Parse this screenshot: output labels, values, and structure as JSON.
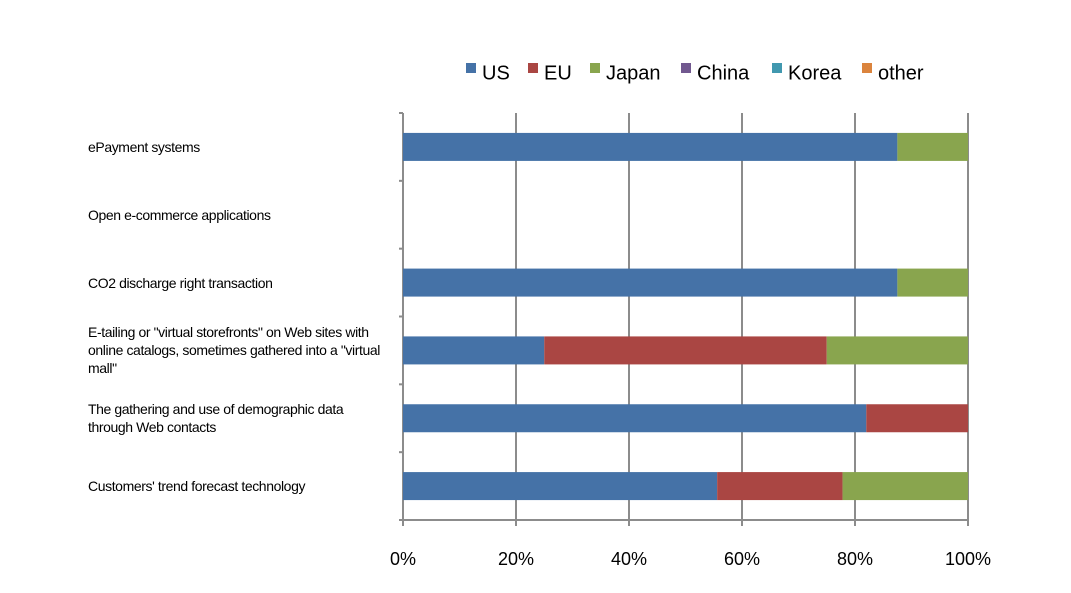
{
  "chart_data": {
    "type": "stacked_bar_horizontal",
    "categories": [
      "ePayment systems",
      "Open e-commerce applications",
      "CO2 discharge right transaction",
      "E-tailing  or \"virtual storefronts\" on Web sites with online catalogs,  sometimes gathered into a \"virtual mall\"",
      "The gathering and use of  demographic data through Web contacts",
      "Customers' trend forecast technology"
    ],
    "series": [
      {
        "name": "US",
        "color": "#4572a7",
        "values": [
          87.5,
          0,
          87.5,
          25,
          82,
          55.6
        ]
      },
      {
        "name": "EU",
        "color": "#aa4643",
        "values": [
          0,
          0,
          0,
          50,
          18,
          22.2
        ]
      },
      {
        "name": "Japan",
        "color": "#89a54e",
        "values": [
          12.5,
          0,
          12.5,
          25,
          0,
          22.2
        ]
      },
      {
        "name": "China",
        "color": "#71588f",
        "values": [
          0,
          0,
          0,
          0,
          0,
          0
        ]
      },
      {
        "name": "Korea",
        "color": "#4198af",
        "values": [
          0,
          0,
          0,
          0,
          0,
          0
        ]
      },
      {
        "name": "other",
        "color": "#db843d",
        "values": [
          0,
          0,
          0,
          0,
          0,
          0
        ]
      }
    ],
    "xlim": [
      0,
      100
    ],
    "xticks": [
      {
        "value": 0,
        "label": "0%"
      },
      {
        "value": 20,
        "label": "20%"
      },
      {
        "value": 40,
        "label": "40%"
      },
      {
        "value": 60,
        "label": "60%"
      },
      {
        "value": 80,
        "label": "80%"
      },
      {
        "value": 100,
        "label": "100%"
      }
    ],
    "grid": true,
    "legend": "top"
  }
}
